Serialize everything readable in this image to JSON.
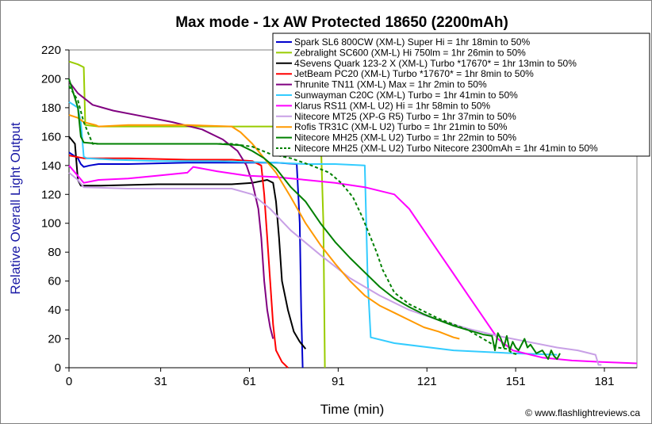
{
  "chart_data": {
    "type": "line",
    "title": "Max mode - 1x AW Protected 18650 (2200mAh)",
    "xlabel": "Time (min)",
    "ylabel": "Relative Overall Light Output",
    "credit": "© www.flashlightreviews.ca",
    "xlim": [
      0,
      192
    ],
    "ylim": [
      0,
      220
    ],
    "xticks": [
      0,
      31,
      61,
      91,
      121,
      151,
      181
    ],
    "yticks": [
      0,
      20,
      40,
      60,
      80,
      100,
      120,
      140,
      160,
      180,
      200,
      220
    ],
    "grid": false,
    "legend_position": "top-right",
    "series": [
      {
        "name": "Spark SL6 800CW (XM-L) Super Hi = 1hr 18min to 50%",
        "color": "#0000cc",
        "dashed": false,
        "points": [
          [
            0,
            149
          ],
          [
            3,
            145
          ],
          [
            4,
            141
          ],
          [
            5,
            139
          ],
          [
            7,
            140
          ],
          [
            10,
            141
          ],
          [
            20,
            141
          ],
          [
            40,
            142
          ],
          [
            60,
            142
          ],
          [
            70,
            142
          ],
          [
            77,
            141
          ],
          [
            78,
            100
          ],
          [
            78.5,
            40
          ],
          [
            79,
            0
          ]
        ]
      },
      {
        "name": "Zebralight SC600 (XM-L) Hi 750lm = 1hr 26min to 50%",
        "color": "#99cc00",
        "dashed": false,
        "points": [
          [
            0,
            212
          ],
          [
            3,
            210
          ],
          [
            5,
            208
          ],
          [
            5.5,
            168
          ],
          [
            10,
            167
          ],
          [
            20,
            167
          ],
          [
            40,
            167
          ],
          [
            60,
            167
          ],
          [
            70,
            167
          ],
          [
            80,
            167
          ],
          [
            85,
            167
          ],
          [
            86,
            100
          ],
          [
            86.5,
            0
          ]
        ]
      },
      {
        "name": "4Sevens Quark 123-2 X (XM-L) Turbo *17670* = 1hr 13min to 50%",
        "color": "#000000",
        "dashed": false,
        "points": [
          [
            0,
            160
          ],
          [
            2,
            155
          ],
          [
            3,
            130
          ],
          [
            4,
            126
          ],
          [
            10,
            126
          ],
          [
            30,
            127
          ],
          [
            55,
            127
          ],
          [
            62,
            128
          ],
          [
            67,
            130
          ],
          [
            69,
            128
          ],
          [
            70,
            115
          ],
          [
            71,
            90
          ],
          [
            72,
            60
          ],
          [
            74,
            40
          ],
          [
            76,
            25
          ],
          [
            78,
            18
          ],
          [
            80,
            13
          ]
        ]
      },
      {
        "name": "JetBeam PC20 (XM-L) Turbo *17670* = 1hr 8min to 50%",
        "color": "#ff0000",
        "dashed": false,
        "points": [
          [
            0,
            147
          ],
          [
            5,
            145
          ],
          [
            20,
            145
          ],
          [
            40,
            144
          ],
          [
            55,
            144
          ],
          [
            62,
            143
          ],
          [
            65,
            140
          ],
          [
            66,
            120
          ],
          [
            67,
            90
          ],
          [
            68,
            60
          ],
          [
            69,
            30
          ],
          [
            70,
            12
          ],
          [
            72,
            4
          ],
          [
            74,
            0
          ]
        ]
      },
      {
        "name": "Thrunite TN11 (XM-L) Max = 1hr 2min to 50%",
        "color": "#800080",
        "dashed": false,
        "points": [
          [
            0,
            198
          ],
          [
            3,
            190
          ],
          [
            8,
            182
          ],
          [
            15,
            178
          ],
          [
            25,
            174
          ],
          [
            35,
            170
          ],
          [
            45,
            165
          ],
          [
            52,
            158
          ],
          [
            57,
            150
          ],
          [
            60,
            140
          ],
          [
            62,
            128
          ],
          [
            64,
            110
          ],
          [
            65,
            90
          ],
          [
            66,
            60
          ],
          [
            67,
            40
          ],
          [
            68,
            28
          ],
          [
            69,
            20
          ]
        ]
      },
      {
        "name": "Sunwayman C20C (XM-L) Turbo = 1hr 41min to 50%",
        "color": "#33ccff",
        "dashed": false,
        "points": [
          [
            0,
            184
          ],
          [
            3,
            180
          ],
          [
            4,
            170
          ],
          [
            5,
            146
          ],
          [
            6,
            145
          ],
          [
            15,
            144
          ],
          [
            30,
            143
          ],
          [
            50,
            143
          ],
          [
            70,
            142
          ],
          [
            80,
            141
          ],
          [
            90,
            141
          ],
          [
            100,
            140
          ],
          [
            101,
            60
          ],
          [
            102,
            21
          ],
          [
            110,
            17
          ],
          [
            130,
            12
          ],
          [
            150,
            10
          ],
          [
            165,
            9
          ]
        ]
      },
      {
        "name": "Klarus RS11 (XM-L U2) Hi = 1hr 58min to 50%",
        "color": "#ff00ff",
        "dashed": false,
        "points": [
          [
            0,
            140
          ],
          [
            5,
            128
          ],
          [
            10,
            130
          ],
          [
            20,
            131
          ],
          [
            30,
            133
          ],
          [
            40,
            135
          ],
          [
            42,
            139
          ],
          [
            50,
            136
          ],
          [
            60,
            133
          ],
          [
            70,
            132
          ],
          [
            80,
            130
          ],
          [
            90,
            128
          ],
          [
            100,
            125
          ],
          [
            110,
            120
          ],
          [
            115,
            110
          ],
          [
            120,
            95
          ],
          [
            125,
            80
          ],
          [
            130,
            65
          ],
          [
            135,
            50
          ],
          [
            140,
            35
          ],
          [
            145,
            20
          ],
          [
            150,
            12
          ],
          [
            160,
            7
          ],
          [
            170,
            5
          ],
          [
            180,
            4
          ],
          [
            192,
            3
          ]
        ]
      },
      {
        "name": "Nitecore MT25 (XP-G R5) Turbo = 1hr 37min to 50%",
        "color": "#c8a0e6",
        "dashed": false,
        "points": [
          [
            0,
            135
          ],
          [
            3,
            130
          ],
          [
            5,
            125
          ],
          [
            20,
            124
          ],
          [
            40,
            124
          ],
          [
            55,
            124
          ],
          [
            62,
            120
          ],
          [
            68,
            110
          ],
          [
            75,
            95
          ],
          [
            85,
            78
          ],
          [
            95,
            62
          ],
          [
            105,
            50
          ],
          [
            115,
            40
          ],
          [
            125,
            33
          ],
          [
            135,
            27
          ],
          [
            145,
            22
          ],
          [
            155,
            18
          ],
          [
            165,
            14
          ],
          [
            172,
            12
          ],
          [
            178,
            9
          ],
          [
            179,
            2
          ],
          [
            180,
            2
          ]
        ]
      },
      {
        "name": "Rofis TR31C (XM-L U2) Turbo = 1hr 21min to 50%",
        "color": "#ff9900",
        "dashed": false,
        "points": [
          [
            0,
            175
          ],
          [
            3,
            173
          ],
          [
            5,
            170
          ],
          [
            9,
            168
          ],
          [
            10,
            167
          ],
          [
            20,
            168
          ],
          [
            40,
            168
          ],
          [
            55,
            167
          ],
          [
            58,
            163
          ],
          [
            62,
            155
          ],
          [
            66,
            145
          ],
          [
            70,
            135
          ],
          [
            75,
            118
          ],
          [
            80,
            100
          ],
          [
            85,
            85
          ],
          [
            90,
            72
          ],
          [
            95,
            60
          ],
          [
            100,
            50
          ],
          [
            105,
            43
          ],
          [
            110,
            38
          ],
          [
            115,
            33
          ],
          [
            120,
            28
          ],
          [
            125,
            25
          ],
          [
            130,
            21
          ],
          [
            132,
            20
          ]
        ]
      },
      {
        "name": "Nitecore MH25 (XM-L U2) Turbo = 1hr 22min to 50%",
        "color": "#008000",
        "dashed": false,
        "points": [
          [
            0,
            200
          ],
          [
            3,
            180
          ],
          [
            4,
            160
          ],
          [
            5,
            156
          ],
          [
            10,
            155
          ],
          [
            30,
            155
          ],
          [
            50,
            155
          ],
          [
            58,
            154
          ],
          [
            62,
            150
          ],
          [
            66,
            145
          ],
          [
            70,
            138
          ],
          [
            75,
            125
          ],
          [
            80,
            115
          ],
          [
            85,
            100
          ],
          [
            90,
            87
          ],
          [
            95,
            76
          ],
          [
            100,
            66
          ],
          [
            105,
            56
          ],
          [
            110,
            48
          ],
          [
            115,
            42
          ],
          [
            120,
            37
          ],
          [
            125,
            33
          ],
          [
            130,
            29
          ],
          [
            135,
            26
          ],
          [
            140,
            23
          ],
          [
            143,
            22
          ],
          [
            144,
            12
          ],
          [
            145,
            24
          ],
          [
            146,
            20
          ],
          [
            147,
            14
          ],
          [
            148,
            22
          ],
          [
            149,
            12
          ],
          [
            150,
            18
          ],
          [
            151,
            14
          ],
          [
            152,
            12
          ],
          [
            154,
            20
          ],
          [
            155,
            14
          ],
          [
            156,
            16
          ],
          [
            158,
            10
          ],
          [
            160,
            12
          ],
          [
            162,
            6
          ],
          [
            163,
            12
          ],
          [
            164,
            8
          ],
          [
            165,
            6
          ],
          [
            166,
            10
          ]
        ]
      },
      {
        "name": "Nitecore MH25 (XM-L U2) Turbo Nitecore 2300mAh = 1hr 41min to 50%",
        "color": "#008000",
        "dashed": true,
        "points": [
          [
            0,
            195
          ],
          [
            3,
            185
          ],
          [
            5,
            170
          ],
          [
            8,
            155
          ],
          [
            20,
            155
          ],
          [
            40,
            155
          ],
          [
            55,
            155
          ],
          [
            62,
            153
          ],
          [
            68,
            148
          ],
          [
            75,
            145
          ],
          [
            82,
            140
          ],
          [
            88,
            135
          ],
          [
            92,
            128
          ],
          [
            96,
            118
          ],
          [
            99,
            105
          ],
          [
            102,
            90
          ],
          [
            104,
            80
          ],
          [
            106,
            68
          ],
          [
            110,
            52
          ],
          [
            115,
            44
          ],
          [
            120,
            39
          ],
          [
            125,
            34
          ],
          [
            130,
            30
          ],
          [
            135,
            26
          ],
          [
            140,
            20
          ],
          [
            145,
            14
          ],
          [
            148,
            13
          ],
          [
            150,
            10
          ],
          [
            152,
            9
          ]
        ]
      }
    ]
  }
}
